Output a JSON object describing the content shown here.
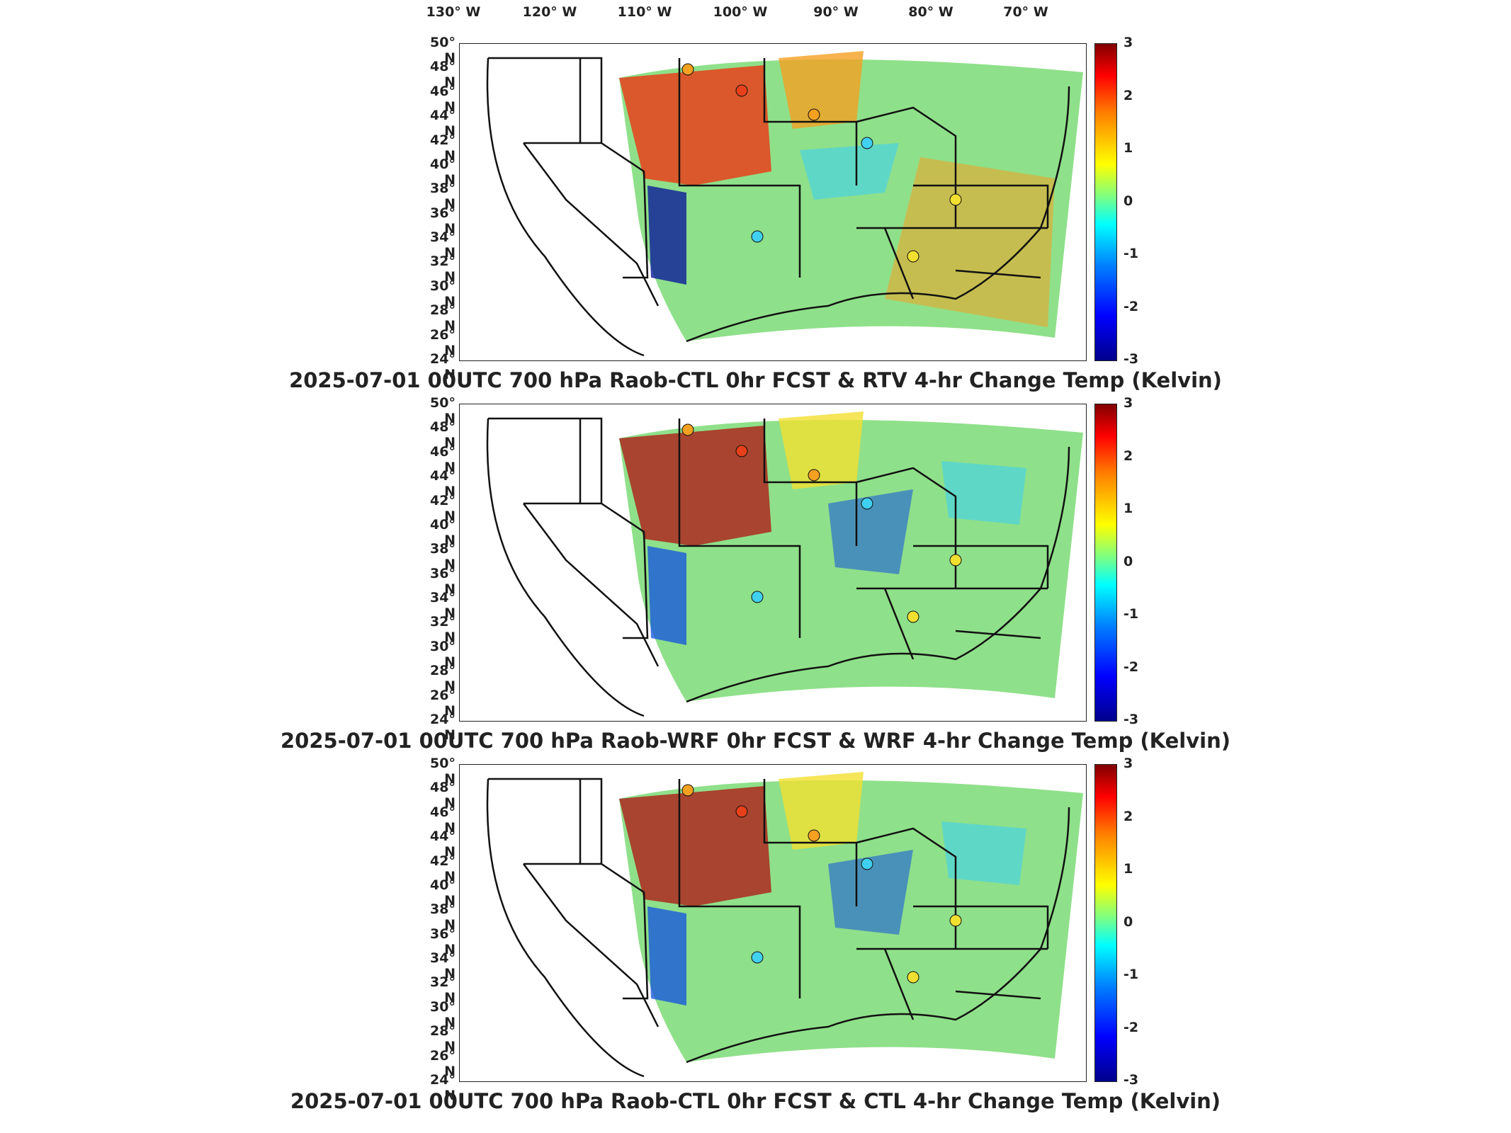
{
  "lon_labels": [
    "130° W",
    "120° W",
    "110° W",
    "100° W",
    "90° W",
    "80° W",
    "70° W"
  ],
  "lat_labels": [
    "50° N",
    "48° N",
    "46° N",
    "44° N",
    "42° N",
    "40° N",
    "38° N",
    "36° N",
    "34° N",
    "32° N",
    "30° N",
    "28° N",
    "26° N",
    "24° N"
  ],
  "colorbar_ticks": [
    "3",
    "2",
    "1",
    "0",
    "-1",
    "-2",
    "-3"
  ],
  "panels": [
    {
      "title": "2025-07-01 00UTC 700 hPa Raob-CTL 0hr FCST & RTV 4-hr Change Temp (Kelvin)"
    },
    {
      "title": "2025-07-01 00UTC 700 hPa Raob-WRF 0hr FCST & WRF 4-hr Change Temp (Kelvin)"
    },
    {
      "title": "2025-07-01 00UTC 700 hPa Raob-CTL 0hr FCST & CTL 4-hr Change Temp (Kelvin)"
    }
  ],
  "colors": {
    "warm": "#e8401a",
    "hot": "#b01010",
    "orange": "#f4a020",
    "yellow": "#f2e030",
    "green": "#8fe08a",
    "cyan": "#40d0f0",
    "blue": "#1050e0",
    "navy": "#0a1a9a",
    "border": "#111111"
  }
}
